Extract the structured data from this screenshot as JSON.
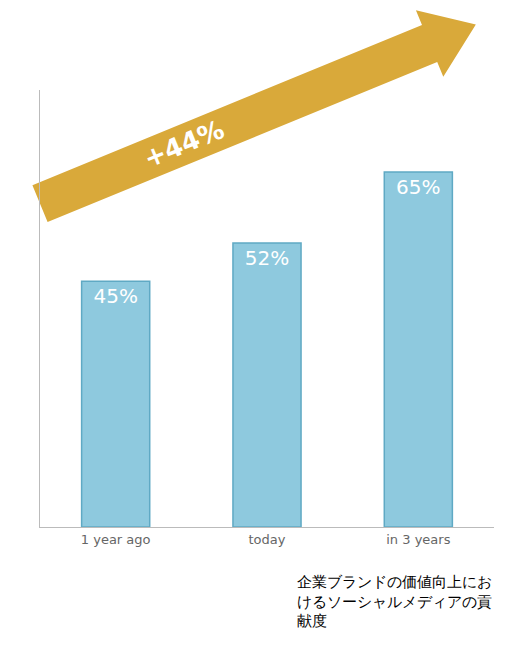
{
  "chart_data": {
    "type": "bar",
    "title": "企業ブランドの価値向上におけるソーシャルメディアの貢献度",
    "categories": [
      "1 year ago",
      "today",
      "in 3 years"
    ],
    "values": [
      45,
      52,
      65
    ],
    "value_labels": [
      "45%",
      "52%",
      "65%"
    ],
    "data_labels": true,
    "color": "#8ec9de",
    "ylim": [
      0,
      80
    ],
    "tick_labels": "x",
    "grid": false,
    "annotations": [
      "+44%"
    ]
  }
}
